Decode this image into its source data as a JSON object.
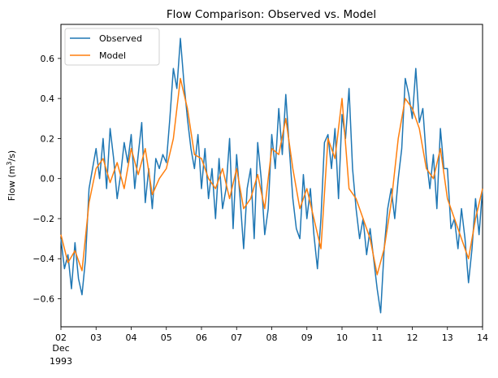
{
  "chart_data": {
    "type": "line",
    "title": "Flow Comparison: Observed vs. Model",
    "xlabel": "",
    "ylabel_main": "Flow (m",
    "ylabel_sup": "3",
    "ylabel_tail": "/s)",
    "ylim": [
      -0.74,
      0.77
    ],
    "xlim": [
      2,
      14
    ],
    "grid": false,
    "legend_position": "upper-left",
    "y_ticks": [
      -0.6,
      -0.4,
      -0.2,
      0.0,
      0.2,
      0.4,
      0.6
    ],
    "y_tick_labels": [
      "−0.6",
      "−0.4",
      "−0.2",
      "0.0",
      "0.2",
      "0.4",
      "0.6"
    ],
    "x_ticks": [
      2,
      3,
      4,
      5,
      6,
      7,
      8,
      9,
      10,
      11,
      12,
      13,
      14
    ],
    "x_tick_labels": [
      "02",
      "03",
      "04",
      "05",
      "06",
      "07",
      "08",
      "09",
      "10",
      "11",
      "12",
      "13",
      "14"
    ],
    "x_month_label": "Dec",
    "x_year_label": "1993",
    "series": [
      {
        "name": "Observed",
        "color": "#1f77b4",
        "x": [
          2.0,
          2.1,
          2.2,
          2.3,
          2.4,
          2.5,
          2.6,
          2.7,
          2.8,
          2.9,
          3.0,
          3.1,
          3.2,
          3.3,
          3.4,
          3.5,
          3.6,
          3.7,
          3.8,
          3.9,
          4.0,
          4.1,
          4.2,
          4.3,
          4.4,
          4.5,
          4.6,
          4.7,
          4.8,
          4.9,
          5.0,
          5.1,
          5.2,
          5.3,
          5.4,
          5.5,
          5.6,
          5.7,
          5.8,
          5.9,
          6.0,
          6.1,
          6.2,
          6.3,
          6.4,
          6.5,
          6.6,
          6.7,
          6.8,
          6.9,
          7.0,
          7.1,
          7.2,
          7.3,
          7.4,
          7.5,
          7.6,
          7.7,
          7.8,
          7.9,
          8.0,
          8.1,
          8.2,
          8.3,
          8.4,
          8.5,
          8.6,
          8.7,
          8.8,
          8.9,
          9.0,
          9.1,
          9.2,
          9.3,
          9.4,
          9.5,
          9.6,
          9.7,
          9.8,
          9.9,
          10.0,
          10.1,
          10.2,
          10.3,
          10.4,
          10.5,
          10.6,
          10.7,
          10.8,
          10.9,
          11.0,
          11.1,
          11.2,
          11.3,
          11.4,
          11.5,
          11.6,
          11.7,
          11.8,
          11.9,
          12.0,
          12.1,
          12.2,
          12.3,
          12.4,
          12.5,
          12.6,
          12.7,
          12.8,
          12.9,
          13.0,
          13.1,
          13.2,
          13.3,
          13.4,
          13.5,
          13.6,
          13.7,
          13.8,
          13.9,
          14.0
        ],
        "y": [
          -0.3,
          -0.45,
          -0.38,
          -0.55,
          -0.32,
          -0.5,
          -0.58,
          -0.4,
          -0.05,
          0.05,
          0.15,
          0.0,
          0.2,
          -0.05,
          0.25,
          0.1,
          -0.1,
          0.02,
          0.18,
          0.08,
          0.22,
          -0.05,
          0.12,
          0.28,
          -0.12,
          0.05,
          -0.15,
          0.1,
          0.05,
          0.12,
          0.08,
          0.3,
          0.55,
          0.45,
          0.7,
          0.48,
          0.3,
          0.15,
          0.05,
          0.22,
          -0.05,
          0.15,
          -0.1,
          0.05,
          -0.2,
          0.1,
          -0.15,
          -0.05,
          0.2,
          -0.25,
          0.12,
          -0.1,
          -0.35,
          -0.05,
          0.05,
          -0.3,
          0.18,
          0.0,
          -0.28,
          -0.15,
          0.22,
          0.05,
          0.35,
          0.12,
          0.42,
          0.15,
          -0.1,
          -0.25,
          -0.3,
          0.02,
          -0.2,
          -0.05,
          -0.28,
          -0.45,
          -0.2,
          0.18,
          0.22,
          0.05,
          0.25,
          -0.1,
          0.32,
          0.2,
          0.45,
          0.05,
          -0.15,
          -0.3,
          -0.2,
          -0.38,
          -0.25,
          -0.4,
          -0.55,
          -0.67,
          -0.35,
          -0.15,
          -0.05,
          -0.2,
          0.0,
          0.15,
          0.5,
          0.42,
          0.3,
          0.55,
          0.28,
          0.35,
          0.1,
          -0.05,
          0.12,
          -0.15,
          0.25,
          0.05,
          0.05,
          -0.25,
          -0.2,
          -0.35,
          -0.15,
          -0.3,
          -0.52,
          -0.35,
          -0.1,
          -0.28,
          -0.05
        ]
      },
      {
        "name": "Model",
        "color": "#ff7f0e",
        "x": [
          2.0,
          2.2,
          2.4,
          2.6,
          2.8,
          3.0,
          3.2,
          3.4,
          3.6,
          3.8,
          4.0,
          4.2,
          4.4,
          4.6,
          4.8,
          5.0,
          5.2,
          5.4,
          5.6,
          5.8,
          6.0,
          6.2,
          6.4,
          6.6,
          6.8,
          7.0,
          7.2,
          7.4,
          7.6,
          7.8,
          8.0,
          8.2,
          8.4,
          8.6,
          8.8,
          9.0,
          9.2,
          9.4,
          9.6,
          9.8,
          10.0,
          10.2,
          10.4,
          10.6,
          10.8,
          11.0,
          11.2,
          11.4,
          11.6,
          11.8,
          12.0,
          12.2,
          12.4,
          12.6,
          12.8,
          13.0,
          13.2,
          13.4,
          13.6,
          13.8,
          14.0
        ],
        "y": [
          -0.28,
          -0.42,
          -0.36,
          -0.46,
          -0.12,
          0.05,
          0.1,
          -0.02,
          0.08,
          -0.05,
          0.15,
          0.02,
          0.15,
          -0.08,
          0.0,
          0.05,
          0.2,
          0.5,
          0.35,
          0.12,
          0.1,
          0.0,
          -0.05,
          0.05,
          -0.1,
          0.05,
          -0.15,
          -0.1,
          0.02,
          -0.15,
          0.15,
          0.12,
          0.3,
          0.05,
          -0.15,
          -0.05,
          -0.2,
          -0.35,
          0.2,
          0.1,
          0.4,
          -0.05,
          -0.1,
          -0.2,
          -0.3,
          -0.48,
          -0.35,
          -0.12,
          0.2,
          0.4,
          0.35,
          0.25,
          0.05,
          0.0,
          0.15,
          -0.1,
          -0.2,
          -0.3,
          -0.4,
          -0.2,
          -0.05
        ]
      }
    ]
  }
}
